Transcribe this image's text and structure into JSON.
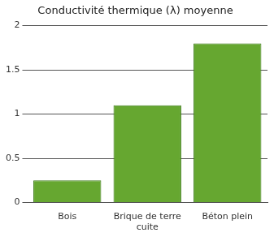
{
  "chart_data": {
    "type": "bar",
    "title": "Conductivité thermique (λ) moyenne",
    "categories": [
      "Bois",
      "Brique de terre cuite",
      "Béton plein"
    ],
    "values": [
      0.25,
      1.1,
      1.8
    ],
    "color": "#66a730",
    "ylim": [
      0,
      2
    ],
    "yticks": [
      0,
      0.5,
      1,
      1.5,
      2
    ],
    "grid": true
  }
}
